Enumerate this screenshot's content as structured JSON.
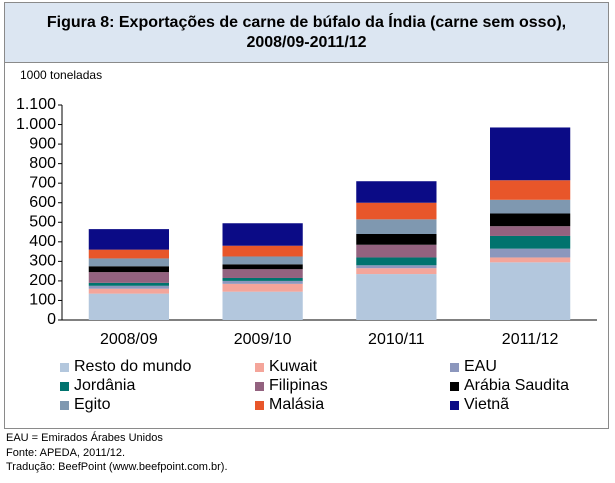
{
  "chart_data": {
    "type": "stacked_bar",
    "title": "Figura 8: Exportações de carne de búfalo da Índia (carne sem osso), 2008/09-2011/12",
    "y_label": "1000 toneladas",
    "categories": [
      "2008/09",
      "2009/10",
      "2010/11",
      "2011/12"
    ],
    "series": [
      {
        "name": "Resto do mundo",
        "color": "#b3c7dd",
        "values": [
          135,
          145,
          235,
          295
        ]
      },
      {
        "name": "Kuwait",
        "color": "#f4a59a",
        "values": [
          25,
          40,
          30,
          25
        ]
      },
      {
        "name": "EAU",
        "color": "#8c97bd",
        "values": [
          15,
          15,
          15,
          45
        ]
      },
      {
        "name": "Jordânia",
        "color": "#00736e",
        "values": [
          15,
          15,
          40,
          65
        ]
      },
      {
        "name": "Filipinas",
        "color": "#93627f",
        "values": [
          55,
          45,
          65,
          50
        ]
      },
      {
        "name": "Arábia Saudita",
        "color": "#000000",
        "values": [
          30,
          25,
          55,
          65
        ]
      },
      {
        "name": "Egito",
        "color": "#7f98b0",
        "values": [
          40,
          40,
          75,
          70
        ]
      },
      {
        "name": "Malásia",
        "color": "#e8562a",
        "values": [
          45,
          55,
          85,
          100
        ]
      },
      {
        "name": "Vietnã",
        "color": "#0b0b86",
        "values": [
          105,
          115,
          110,
          270
        ]
      }
    ],
    "ylim": [
      0,
      1100
    ],
    "yticks": [
      0,
      100,
      200,
      300,
      400,
      500,
      600,
      700,
      800,
      900,
      {
        "value": 1000,
        "label": "1.000"
      },
      {
        "value": 1100,
        "label": "1.100"
      }
    ],
    "notes": [
      "EAU = Emirados Árabes Unidos",
      "Fonte: APEDA, 2011/12.",
      "Tradução: BeefPoint (www.beefpoint.com.br)."
    ]
  }
}
